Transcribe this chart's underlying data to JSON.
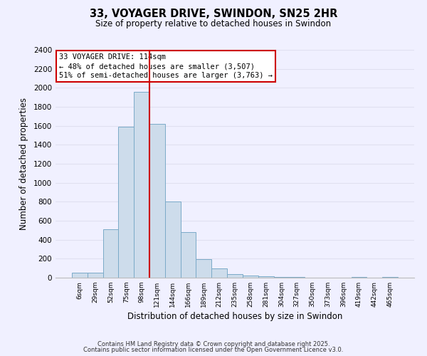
{
  "title": "33, VOYAGER DRIVE, SWINDON, SN25 2HR",
  "subtitle": "Size of property relative to detached houses in Swindon",
  "xlabel": "Distribution of detached houses by size in Swindon",
  "ylabel": "Number of detached properties",
  "bar_labels": [
    "6sqm",
    "29sqm",
    "52sqm",
    "75sqm",
    "98sqm",
    "121sqm",
    "144sqm",
    "166sqm",
    "189sqm",
    "212sqm",
    "235sqm",
    "258sqm",
    "281sqm",
    "304sqm",
    "327sqm",
    "350sqm",
    "373sqm",
    "396sqm",
    "419sqm",
    "442sqm",
    "465sqm"
  ],
  "bar_values": [
    55,
    50,
    510,
    1590,
    1960,
    1620,
    800,
    480,
    195,
    95,
    35,
    25,
    15,
    10,
    5,
    0,
    0,
    0,
    5,
    0,
    5
  ],
  "bar_color": "#cddceb",
  "bar_edge_color": "#7aaac8",
  "ylim": [
    0,
    2400
  ],
  "yticks": [
    0,
    200,
    400,
    600,
    800,
    1000,
    1200,
    1400,
    1600,
    1800,
    2000,
    2200,
    2400
  ],
  "vline_x_index": 4.5,
  "vline_color": "#cc0000",
  "annotation_box_text": "33 VOYAGER DRIVE: 114sqm\n← 48% of detached houses are smaller (3,507)\n51% of semi-detached houses are larger (3,763) →",
  "footer_line1": "Contains HM Land Registry data © Crown copyright and database right 2025.",
  "footer_line2": "Contains public sector information licensed under the Open Government Licence v3.0.",
  "background_color": "#f0f0ff",
  "grid_color": "#e0e0f0"
}
